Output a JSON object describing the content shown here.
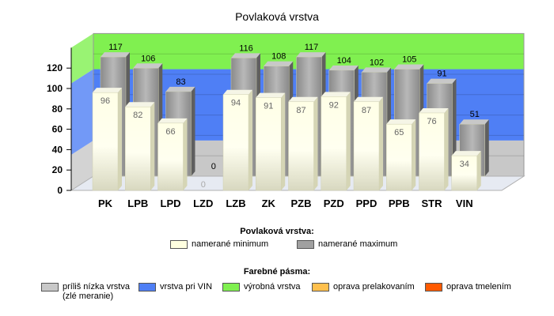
{
  "chart_data": {
    "type": "bar",
    "title": "Povlaková vrstva",
    "categories": [
      "PK",
      "LPB",
      "LPD",
      "LZD",
      "LZB",
      "ZK",
      "PZB",
      "PZD",
      "PPD",
      "PPB",
      "STR",
      "VIN"
    ],
    "series": [
      {
        "name": "namerané minimum",
        "values": [
          96,
          82,
          66,
          0,
          94,
          91,
          87,
          92,
          87,
          65,
          76,
          34
        ],
        "color": "#ffffe0"
      },
      {
        "name": "namerané maximum",
        "values": [
          117,
          106,
          83,
          0,
          116,
          108,
          117,
          104,
          102,
          105,
          91,
          51
        ],
        "color": "#a0a0a0"
      }
    ],
    "yticks": [
      0,
      20,
      40,
      60,
      80,
      100,
      120
    ],
    "ylim": [
      0,
      140
    ],
    "bands": [
      {
        "from": 0,
        "to": 35,
        "color": "#c8c8c8"
      },
      {
        "from": 35,
        "to": 105,
        "color": "#4f7ff5"
      },
      {
        "from": 105,
        "to": 140,
        "color": "#80f050"
      }
    ],
    "legend_placement": "bottom"
  },
  "legend": {
    "series_title": "Povlaková vrstva:",
    "bands_title": "Farebné pásma:",
    "bands": [
      {
        "label": "príliš nízka vrstva\n(zlé meranie)",
        "color": "#c8c8c8"
      },
      {
        "label": "vrstva pri VIN",
        "color": "#4f7ff5"
      },
      {
        "label": "výrobná vrstva",
        "color": "#80f050"
      },
      {
        "label": "oprava prelakovaním",
        "color": "#ffc04d"
      },
      {
        "label": "oprava tmelením",
        "color": "#ff5a00"
      }
    ]
  }
}
